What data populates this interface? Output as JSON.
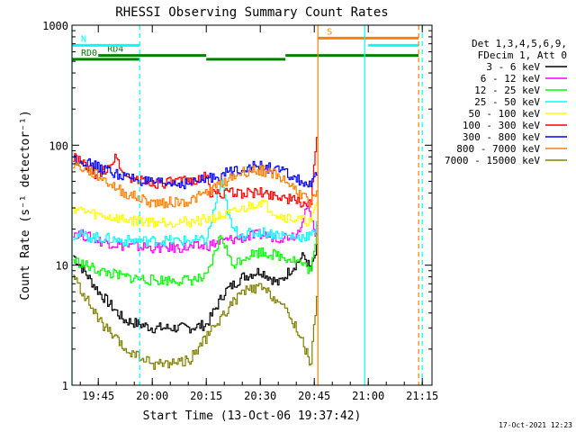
{
  "chart_data": {
    "type": "line",
    "title": "RHESSI Observing Summary Count Rates",
    "xlabel": "Start Time (13-Oct-06 19:37:42)",
    "ylabel": "Count Rate (s⁻¹ detector⁻¹)",
    "y_scale": "log",
    "ylim": [
      1,
      1000
    ],
    "xlim": [
      "19:37:42",
      "21:17:42"
    ],
    "grid": false,
    "x_ticks": [
      "19:45",
      "20:00",
      "20:15",
      "20:30",
      "20:45",
      "21:00",
      "21:15"
    ],
    "y_ticks": [
      "1",
      "10",
      "100",
      "1000"
    ],
    "legend_header": [
      "Det 1,3,4,5,6,9,",
      "FDecim 1, Att 0"
    ],
    "legend_position": "top-right",
    "footer_date": "17-Oct-2021 12:23",
    "series": [
      {
        "name": "3 - 6 keV",
        "color": "#000000",
        "points": [
          [
            "19:38",
            12
          ],
          [
            "19:45",
            6
          ],
          [
            "19:52",
            3.5
          ],
          [
            "20:00",
            3
          ],
          [
            "20:10",
            3
          ],
          [
            "20:15",
            3.2
          ],
          [
            "20:20",
            6
          ],
          [
            "20:25",
            8
          ],
          [
            "20:30",
            9
          ],
          [
            "20:35",
            7
          ],
          [
            "20:38",
            9
          ],
          [
            "20:42",
            12
          ],
          [
            "20:44",
            9
          ],
          [
            "20:46",
            15
          ]
        ]
      },
      {
        "name": "6 - 12 keV",
        "color": "#ff00ff",
        "points": [
          [
            "19:38",
            19
          ],
          [
            "19:45",
            16
          ],
          [
            "19:52",
            14.5
          ],
          [
            "20:00",
            14
          ],
          [
            "20:10",
            14
          ],
          [
            "20:15",
            14.5
          ],
          [
            "20:20",
            16
          ],
          [
            "20:25",
            17
          ],
          [
            "20:30",
            18
          ],
          [
            "20:35",
            17
          ],
          [
            "20:40",
            18
          ],
          [
            "20:43",
            32
          ],
          [
            "20:45",
            18
          ],
          [
            "20:46",
            25
          ]
        ]
      },
      {
        "name": "12 - 25 keV",
        "color": "#00ff00",
        "points": [
          [
            "19:38",
            11
          ],
          [
            "19:45",
            9
          ],
          [
            "19:52",
            8
          ],
          [
            "20:00",
            7.5
          ],
          [
            "20:10",
            7.5
          ],
          [
            "20:15",
            7.8
          ],
          [
            "20:19",
            18
          ],
          [
            "20:22",
            10
          ],
          [
            "20:26",
            12
          ],
          [
            "20:30",
            13
          ],
          [
            "20:35",
            12
          ],
          [
            "20:40",
            11
          ],
          [
            "20:44",
            9
          ],
          [
            "20:46",
            20
          ]
        ]
      },
      {
        "name": "25 - 50 keV",
        "color": "#00ffff",
        "points": [
          [
            "19:38",
            18
          ],
          [
            "19:45",
            17
          ],
          [
            "19:52",
            16
          ],
          [
            "20:00",
            16
          ],
          [
            "20:10",
            16
          ],
          [
            "20:15",
            16
          ],
          [
            "20:19",
            50
          ],
          [
            "20:22",
            20
          ],
          [
            "20:25",
            18
          ],
          [
            "20:30",
            19
          ],
          [
            "20:35",
            18
          ],
          [
            "20:40",
            17
          ],
          [
            "20:45",
            18
          ],
          [
            "20:46",
            30
          ]
        ]
      },
      {
        "name": "50 - 100 keV",
        "color": "#ffff00",
        "points": [
          [
            "19:38",
            30
          ],
          [
            "19:45",
            26
          ],
          [
            "19:52",
            24
          ],
          [
            "20:00",
            23
          ],
          [
            "20:10",
            23
          ],
          [
            "20:15",
            24
          ],
          [
            "20:22",
            27
          ],
          [
            "20:27",
            31
          ],
          [
            "20:30",
            34
          ],
          [
            "20:35",
            26
          ],
          [
            "20:40",
            24
          ],
          [
            "20:44",
            23
          ],
          [
            "20:46",
            35
          ]
        ]
      },
      {
        "name": "100 - 300 keV",
        "color": "#ff0000",
        "points": [
          [
            "19:38",
            80
          ],
          [
            "19:45",
            55
          ],
          [
            "19:50",
            80
          ],
          [
            "19:52",
            55
          ],
          [
            "20:00",
            48
          ],
          [
            "20:10",
            50
          ],
          [
            "20:15",
            55
          ],
          [
            "20:16",
            40
          ],
          [
            "20:25",
            40
          ],
          [
            "20:30",
            40
          ],
          [
            "20:35",
            38
          ],
          [
            "20:40",
            34
          ],
          [
            "20:44",
            32
          ],
          [
            "20:46",
            180
          ]
        ]
      },
      {
        "name": "300 - 800 keV",
        "color": "#0000ff",
        "points": [
          [
            "19:38",
            78
          ],
          [
            "19:45",
            65
          ],
          [
            "19:52",
            55
          ],
          [
            "20:00",
            48
          ],
          [
            "20:10",
            48
          ],
          [
            "20:15",
            52
          ],
          [
            "20:20",
            58
          ],
          [
            "20:25",
            65
          ],
          [
            "20:30",
            67
          ],
          [
            "20:35",
            62
          ],
          [
            "20:40",
            52
          ],
          [
            "20:44",
            45
          ],
          [
            "20:46",
            60
          ]
        ]
      },
      {
        "name": "800 - 7000 keV",
        "color": "#ff8000",
        "points": [
          [
            "19:38",
            70
          ],
          [
            "19:45",
            55
          ],
          [
            "19:52",
            40
          ],
          [
            "20:00",
            33
          ],
          [
            "20:10",
            34
          ],
          [
            "20:15",
            40
          ],
          [
            "20:20",
            50
          ],
          [
            "20:25",
            60
          ],
          [
            "20:30",
            62
          ],
          [
            "20:35",
            56
          ],
          [
            "20:40",
            42
          ],
          [
            "20:44",
            33
          ],
          [
            "20:46",
            40
          ]
        ]
      },
      {
        "name": "7000 - 15000 keV",
        "color": "#808000",
        "points": [
          [
            "19:38",
            8
          ],
          [
            "19:45",
            3.5
          ],
          [
            "19:52",
            2
          ],
          [
            "20:00",
            1.5
          ],
          [
            "20:10",
            1.6
          ],
          [
            "20:15",
            2.5
          ],
          [
            "20:20",
            4
          ],
          [
            "20:25",
            6
          ],
          [
            "20:30",
            6.5
          ],
          [
            "20:35",
            5
          ],
          [
            "20:40",
            3
          ],
          [
            "20:44",
            1.5
          ],
          [
            "20:46",
            8
          ]
        ]
      }
    ],
    "annotations": {
      "spans": [
        {
          "label": "RD0",
          "color": "#008000",
          "level": 520,
          "start": "19:37:42",
          "end": "19:56:30"
        },
        {
          "label": "RD4",
          "color": "#008000",
          "level": 560,
          "start": "19:45",
          "end": "20:15"
        },
        {
          "label": "",
          "color": "#008000",
          "level": 520,
          "start": "20:15",
          "end": "20:37"
        },
        {
          "label": "",
          "color": "#008000",
          "level": 560,
          "start": "20:37",
          "end": "21:14"
        },
        {
          "label": "N",
          "color": "#00ffff",
          "level": 680,
          "start": "19:37:42",
          "end": "19:56:30"
        },
        {
          "label": "",
          "color": "#00ffff",
          "level": 680,
          "start": "21:00",
          "end": "21:14"
        },
        {
          "label": "S",
          "color": "#ff8000",
          "level": 780,
          "start": "20:46",
          "end": "21:14"
        }
      ],
      "vlines": [
        {
          "time": "19:37:42",
          "color": "#00ffff",
          "dashed": false
        },
        {
          "time": "19:56:30",
          "color": "#00ffff",
          "dashed": true
        },
        {
          "time": "20:46",
          "color": "#ff8000",
          "dashed": false
        },
        {
          "time": "20:59",
          "color": "#00ffff",
          "dashed": false
        },
        {
          "time": "21:14",
          "color": "#ff8000",
          "dashed": true
        },
        {
          "time": "21:15",
          "color": "#00ffff",
          "dashed": true
        }
      ]
    }
  }
}
